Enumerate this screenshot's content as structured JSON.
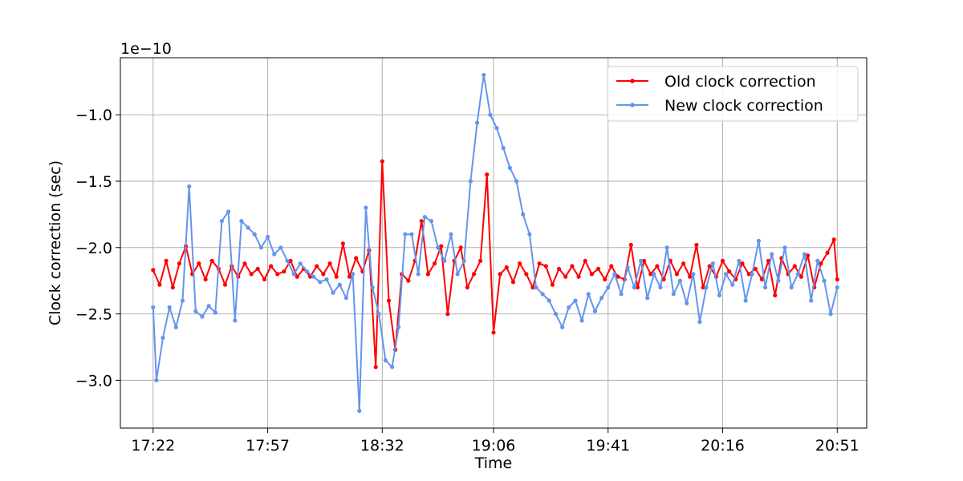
{
  "chart_data": {
    "type": "line",
    "title": "",
    "xlabel": "Time",
    "ylabel": "Clock correction (sec)",
    "y_offset_text": "1e−10",
    "y_scale": 1e-10,
    "x_unit": "HH:MM",
    "x_ticks": [
      "17:22",
      "17:57",
      "18:32",
      "19:06",
      "19:41",
      "20:16",
      "20:51"
    ],
    "xlim": [
      "17:12",
      "21:00"
    ],
    "y_ticks": [
      -3.0,
      -2.5,
      -2.0,
      -1.5,
      -1.0
    ],
    "y_tick_labels": [
      "−3.0",
      "−2.5",
      "−2.0",
      "−1.5",
      "−1.0"
    ],
    "ylim": [
      -3.36,
      -0.57
    ],
    "grid": true,
    "legend_position": "top-right",
    "series": [
      {
        "name": "Old clock correction",
        "color": "#ff0000",
        "x": [
          "17:22",
          "17:24",
          "17:26",
          "17:28",
          "17:30",
          "17:32",
          "17:34",
          "17:36",
          "17:38",
          "17:40",
          "17:42",
          "17:44",
          "17:46",
          "17:48",
          "17:50",
          "17:52",
          "17:54",
          "17:56",
          "17:58",
          "18:00",
          "18:02",
          "18:04",
          "18:06",
          "18:08",
          "18:10",
          "18:12",
          "18:14",
          "18:16",
          "18:18",
          "18:20",
          "18:22",
          "18:24",
          "18:26",
          "18:28",
          "18:30",
          "18:32",
          "18:34",
          "18:36",
          "18:38",
          "18:40",
          "18:42",
          "18:44",
          "18:46",
          "18:48",
          "18:50",
          "18:52",
          "18:54",
          "18:56",
          "18:58",
          "19:00",
          "19:02",
          "19:04",
          "19:06",
          "19:08",
          "19:10",
          "19:12",
          "19:14",
          "19:16",
          "19:18",
          "19:20",
          "19:22",
          "19:24",
          "19:26",
          "19:28",
          "19:30",
          "19:32",
          "19:34",
          "19:36",
          "19:38",
          "19:40",
          "19:42",
          "19:44",
          "19:46",
          "19:48",
          "19:50",
          "19:52",
          "19:54",
          "19:56",
          "19:58",
          "20:00",
          "20:02",
          "20:04",
          "20:06",
          "20:08",
          "20:10",
          "20:12",
          "20:14",
          "20:16",
          "20:18",
          "20:20",
          "20:22",
          "20:24",
          "20:26",
          "20:28",
          "20:30",
          "20:32",
          "20:34",
          "20:36",
          "20:38",
          "20:40",
          "20:42",
          "20:44",
          "20:46",
          "20:48",
          "20:50",
          "20:51"
        ],
        "values": [
          -2.17,
          -2.28,
          -2.1,
          -2.3,
          -2.12,
          -1.99,
          -2.2,
          -2.12,
          -2.24,
          -2.1,
          -2.16,
          -2.28,
          -2.14,
          -2.22,
          -2.12,
          -2.2,
          -2.16,
          -2.24,
          -2.14,
          -2.2,
          -2.18,
          -2.1,
          -2.22,
          -2.16,
          -2.22,
          -2.14,
          -2.2,
          -2.12,
          -2.22,
          -1.97,
          -2.22,
          -2.08,
          -2.18,
          -2.02,
          -2.9,
          -1.35,
          -2.4,
          -2.77,
          -2.2,
          -2.25,
          -2.1,
          -1.8,
          -2.2,
          -2.12,
          -1.99,
          -2.5,
          -2.1,
          -2.0,
          -2.3,
          -2.2,
          -2.1,
          -1.45,
          -2.64,
          -2.2,
          -2.15,
          -2.26,
          -2.12,
          -2.2,
          -2.3,
          -2.12,
          -2.14,
          -2.28,
          -2.16,
          -2.22,
          -2.14,
          -2.22,
          -2.1,
          -2.2,
          -2.16,
          -2.24,
          -2.14,
          -2.22,
          -2.24,
          -1.98,
          -2.3,
          -2.1,
          -2.2,
          -2.14,
          -2.24,
          -2.1,
          -2.2,
          -2.12,
          -2.22,
          -1.98,
          -2.3,
          -2.14,
          -2.22,
          -2.1,
          -2.18,
          -2.24,
          -2.12,
          -2.2,
          -2.16,
          -2.24,
          -2.1,
          -2.36,
          -2.08,
          -2.2,
          -2.14,
          -2.22,
          -2.06,
          -2.3,
          -2.12,
          -2.04,
          -1.94,
          -2.24
        ]
      },
      {
        "name": "New clock correction",
        "color": "#6495ed",
        "x": [
          "17:22",
          "17:23",
          "17:25",
          "17:27",
          "17:29",
          "17:31",
          "17:33",
          "17:35",
          "17:37",
          "17:39",
          "17:41",
          "17:43",
          "17:45",
          "17:47",
          "17:49",
          "17:51",
          "17:53",
          "17:55",
          "17:57",
          "17:59",
          "18:01",
          "18:03",
          "18:05",
          "18:07",
          "18:09",
          "18:11",
          "18:13",
          "18:15",
          "18:17",
          "18:19",
          "18:21",
          "18:23",
          "18:25",
          "18:27",
          "18:29",
          "18:31",
          "18:33",
          "18:35",
          "18:37",
          "18:39",
          "18:41",
          "18:43",
          "18:45",
          "18:47",
          "18:49",
          "18:51",
          "18:53",
          "18:55",
          "18:57",
          "18:59",
          "19:01",
          "19:03",
          "19:05",
          "19:07",
          "19:09",
          "19:11",
          "19:13",
          "19:15",
          "19:17",
          "19:19",
          "19:21",
          "19:23",
          "19:25",
          "19:27",
          "19:29",
          "19:31",
          "19:33",
          "19:35",
          "19:37",
          "19:39",
          "19:41",
          "19:43",
          "19:45",
          "19:47",
          "19:49",
          "19:51",
          "19:53",
          "19:55",
          "19:57",
          "19:59",
          "20:01",
          "20:03",
          "20:05",
          "20:07",
          "20:09",
          "20:11",
          "20:13",
          "20:15",
          "20:17",
          "20:19",
          "20:21",
          "20:23",
          "20:25",
          "20:27",
          "20:29",
          "20:31",
          "20:33",
          "20:35",
          "20:37",
          "20:39",
          "20:41",
          "20:43",
          "20:45",
          "20:47",
          "20:49",
          "20:51"
        ],
        "values": [
          -2.45,
          -3.0,
          -2.68,
          -2.45,
          -2.6,
          -2.4,
          -1.54,
          -2.48,
          -2.52,
          -2.44,
          -2.49,
          -1.8,
          -1.73,
          -2.55,
          -1.8,
          -1.85,
          -1.9,
          -2.0,
          -1.92,
          -2.05,
          -2.0,
          -2.1,
          -2.2,
          -2.12,
          -2.18,
          -2.22,
          -2.26,
          -2.24,
          -2.34,
          -2.28,
          -2.38,
          -2.2,
          -3.23,
          -1.7,
          -2.3,
          -2.5,
          -2.85,
          -2.9,
          -2.6,
          -1.9,
          -1.9,
          -2.2,
          -1.77,
          -1.8,
          -2.0,
          -2.1,
          -1.9,
          -2.2,
          -2.1,
          -1.5,
          -1.06,
          -0.7,
          -1.0,
          -1.1,
          -1.25,
          -1.4,
          -1.5,
          -1.75,
          -1.9,
          -2.3,
          -2.35,
          -2.4,
          -2.5,
          -2.6,
          -2.45,
          -2.4,
          -2.55,
          -2.35,
          -2.48,
          -2.38,
          -2.3,
          -2.2,
          -2.35,
          -2.15,
          -2.3,
          -2.1,
          -2.38,
          -2.2,
          -2.3,
          -2.0,
          -2.35,
          -2.25,
          -2.42,
          -2.2,
          -2.56,
          -2.3,
          -2.12,
          -2.36,
          -2.2,
          -2.28,
          -2.1,
          -2.4,
          -2.2,
          -1.95,
          -2.3,
          -2.05,
          -2.25,
          -2.0,
          -2.3,
          -2.2,
          -2.05,
          -2.4,
          -2.1,
          -2.25,
          -2.5,
          -2.3
        ]
      }
    ]
  }
}
